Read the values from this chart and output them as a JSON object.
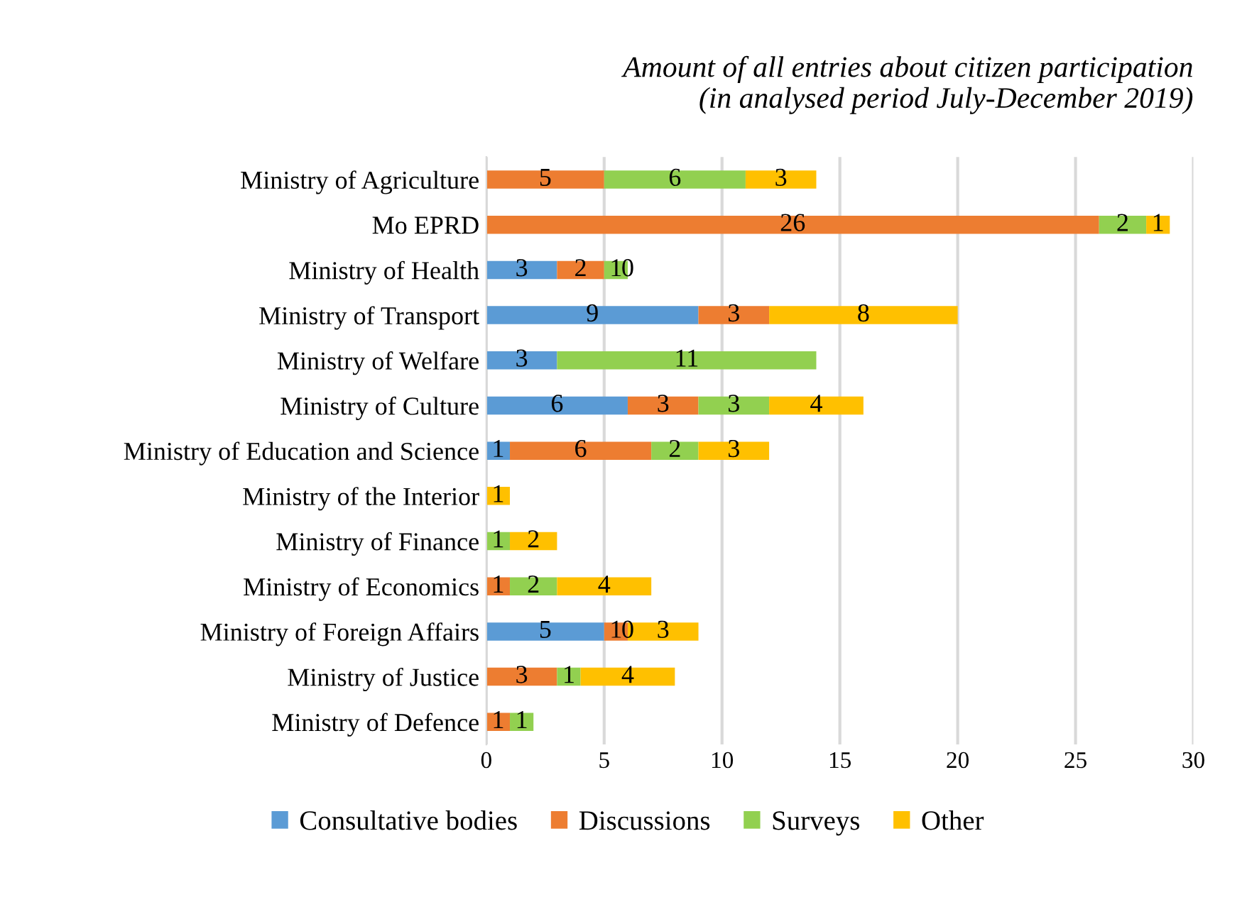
{
  "chart_data": {
    "type": "bar",
    "orientation": "horizontal",
    "stacked": true,
    "title": "Amount of all entries about citizen participation\n(in analysed period July-December 2019)",
    "categories": [
      "Ministry of Agriculture",
      "Mo EPRD",
      "Ministry of Health",
      "Ministry of Transport",
      "Ministry of Welfare",
      "Ministry of Culture",
      "Ministry of Education and Science",
      "Ministry of the Interior",
      "Ministry of Finance",
      "Ministry of Economics",
      "Ministry of Foreign Affairs",
      "Ministry of Justice",
      "Ministry of Defence"
    ],
    "series": [
      {
        "name": "Consultative bodies",
        "color": "#5b9bd5",
        "values": [
          null,
          null,
          3,
          9,
          3,
          6,
          1,
          null,
          null,
          null,
          5,
          null,
          null
        ],
        "value_labels": [
          null,
          null,
          "3",
          "9",
          "3",
          "6",
          "1",
          null,
          null,
          null,
          "5",
          null,
          null
        ]
      },
      {
        "name": "Discussions",
        "color": "#ed7d31",
        "values": [
          5,
          26,
          2,
          3,
          null,
          3,
          6,
          null,
          null,
          1,
          1,
          3,
          1
        ],
        "value_labels": [
          "5",
          "26",
          "2",
          "3",
          null,
          "3",
          "6",
          null,
          null,
          "1",
          "1",
          "3",
          "1"
        ]
      },
      {
        "name": "Surveys",
        "color": "#92d050",
        "values": [
          6,
          2,
          1,
          null,
          11,
          3,
          2,
          null,
          1,
          2,
          0,
          1,
          1
        ],
        "value_labels": [
          "6",
          "2",
          "1",
          null,
          "11",
          "3",
          "2",
          null,
          "1",
          "2",
          "0",
          "1",
          "1"
        ]
      },
      {
        "name": "Other",
        "color": "#ffc000",
        "values": [
          3,
          1,
          0,
          8,
          null,
          4,
          3,
          1,
          2,
          4,
          3,
          4,
          null
        ],
        "value_labels": [
          "3",
          "1",
          "0",
          "8",
          null,
          "4",
          "3",
          "1",
          "2",
          "4",
          "3",
          "4",
          null
        ]
      }
    ],
    "xlim": [
      0,
      30
    ],
    "xticks": [
      0,
      5,
      10,
      15,
      20,
      25,
      30
    ],
    "grid": "x",
    "legend": "bottom"
  }
}
